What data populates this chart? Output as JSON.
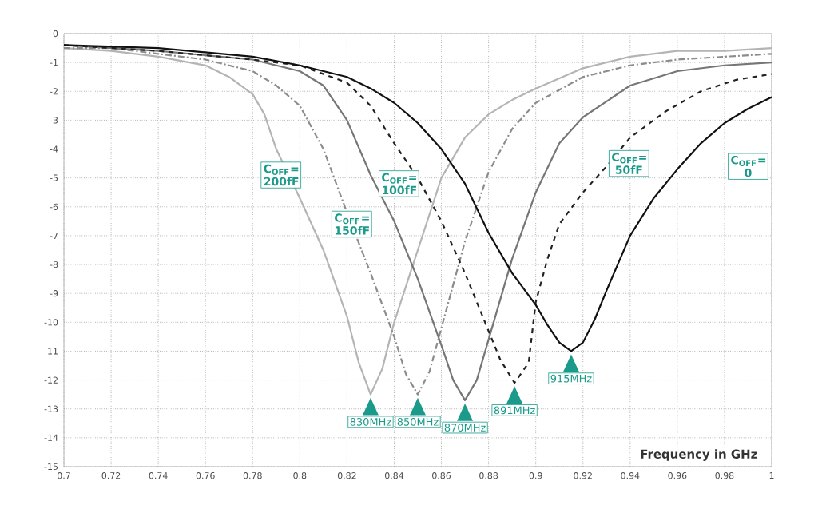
{
  "chart_data": {
    "type": "line",
    "xlabel": "Frequency in GHz",
    "xlim": [
      0.7,
      1
    ],
    "ylim": [
      -15,
      0
    ],
    "xticks": [
      0.7,
      0.72,
      0.74,
      0.76,
      0.78,
      0.8,
      0.82,
      0.84,
      0.86,
      0.88,
      0.9,
      0.92,
      0.94,
      0.96,
      0.98,
      1
    ],
    "yticks": [
      -15,
      -14,
      -13,
      -12,
      -11,
      -10,
      -9,
      -8,
      -7,
      -6,
      -5,
      -4,
      -3,
      -2,
      -1,
      0
    ],
    "grid": true,
    "marker": "none",
    "series": [
      {
        "name": "C$_{OFF}$= 200fF",
        "color": "#b4b4b4",
        "line_style": "solid",
        "x": [
          0.7,
          0.72,
          0.74,
          0.76,
          0.77,
          0.78,
          0.785,
          0.79,
          0.8,
          0.81,
          0.82,
          0.825,
          0.83,
          0.835,
          0.84,
          0.85,
          0.86,
          0.87,
          0.88,
          0.89,
          0.9,
          0.92,
          0.94,
          0.96,
          0.98,
          1
        ],
        "values": [
          -0.5,
          -0.6,
          -0.8,
          -1.1,
          -1.5,
          -2.1,
          -2.8,
          -4.0,
          -5.7,
          -7.5,
          -9.8,
          -11.4,
          -12.5,
          -11.6,
          -10.0,
          -7.5,
          -5.0,
          -3.6,
          -2.8,
          -2.3,
          -1.9,
          -1.2,
          -0.8,
          -0.6,
          -0.6,
          -0.5
        ]
      },
      {
        "name": "C$_{OFF}$= 150fF",
        "color": "#8c8c8c",
        "line_style": "dashdot",
        "x": [
          0.7,
          0.72,
          0.74,
          0.76,
          0.78,
          0.79,
          0.8,
          0.81,
          0.82,
          0.83,
          0.84,
          0.845,
          0.85,
          0.855,
          0.86,
          0.87,
          0.88,
          0.89,
          0.9,
          0.92,
          0.94,
          0.96,
          0.98,
          1
        ],
        "values": [
          -0.5,
          -0.5,
          -0.7,
          -0.9,
          -1.3,
          -1.8,
          -2.5,
          -4.0,
          -6.2,
          -8.3,
          -10.5,
          -11.8,
          -12.5,
          -11.7,
          -10.2,
          -7.2,
          -4.8,
          -3.3,
          -2.4,
          -1.5,
          -1.1,
          -0.9,
          -0.8,
          -0.7
        ]
      },
      {
        "name": "C$_{OFF}$= 100fF",
        "color": "#767676",
        "line_style": "solid",
        "x": [
          0.7,
          0.74,
          0.78,
          0.8,
          0.81,
          0.82,
          0.83,
          0.84,
          0.85,
          0.86,
          0.865,
          0.87,
          0.875,
          0.88,
          0.89,
          0.9,
          0.91,
          0.92,
          0.94,
          0.96,
          0.98,
          1
        ],
        "values": [
          -0.4,
          -0.6,
          -0.9,
          -1.3,
          -1.8,
          -3.0,
          -4.9,
          -6.5,
          -8.5,
          -10.8,
          -12.0,
          -12.7,
          -12.0,
          -10.6,
          -7.8,
          -5.5,
          -3.8,
          -2.9,
          -1.8,
          -1.3,
          -1.1,
          -1.0
        ]
      },
      {
        "name": "C$_{OFF}$= 50fF",
        "color": "#222222",
        "line_style": "dashed",
        "x": [
          0.7,
          0.74,
          0.78,
          0.8,
          0.82,
          0.83,
          0.84,
          0.85,
          0.86,
          0.87,
          0.88,
          0.885,
          0.891,
          0.897,
          0.9,
          0.905,
          0.91,
          0.92,
          0.93,
          0.94,
          0.955,
          0.97,
          0.985,
          1
        ],
        "values": [
          -0.4,
          -0.6,
          -0.9,
          -1.1,
          -1.7,
          -2.5,
          -3.8,
          -5.0,
          -6.5,
          -8.3,
          -10.3,
          -11.3,
          -12.1,
          -11.4,
          -9.3,
          -7.8,
          -6.6,
          -5.5,
          -4.6,
          -3.6,
          -2.7,
          -2.0,
          -1.6,
          -1.4
        ]
      },
      {
        "name": "C$_{OFF}$= 0",
        "color": "#111111",
        "line_style": "solid",
        "x": [
          0.7,
          0.74,
          0.78,
          0.8,
          0.82,
          0.83,
          0.84,
          0.85,
          0.86,
          0.87,
          0.88,
          0.89,
          0.9,
          0.905,
          0.91,
          0.915,
          0.92,
          0.925,
          0.93,
          0.94,
          0.95,
          0.96,
          0.97,
          0.98,
          0.99,
          1
        ],
        "values": [
          -0.4,
          -0.5,
          -0.8,
          -1.1,
          -1.5,
          -1.9,
          -2.4,
          -3.1,
          -4.0,
          -5.2,
          -6.9,
          -8.3,
          -9.4,
          -10.1,
          -10.7,
          -11.0,
          -10.7,
          -9.9,
          -8.9,
          -7.0,
          -5.7,
          -4.7,
          -3.8,
          -3.1,
          -2.6,
          -2.2
        ]
      }
    ],
    "annotations": [
      {
        "text": "830MHz",
        "x": 0.83,
        "y": -12.5
      },
      {
        "text": "850MHz",
        "x": 0.85,
        "y": -12.5
      },
      {
        "text": "870MHz",
        "x": 0.87,
        "y": -12.7
      },
      {
        "text": "891MHz",
        "x": 0.891,
        "y": -12.1
      },
      {
        "text": "915MHz",
        "x": 0.915,
        "y": -11.0
      }
    ]
  }
}
